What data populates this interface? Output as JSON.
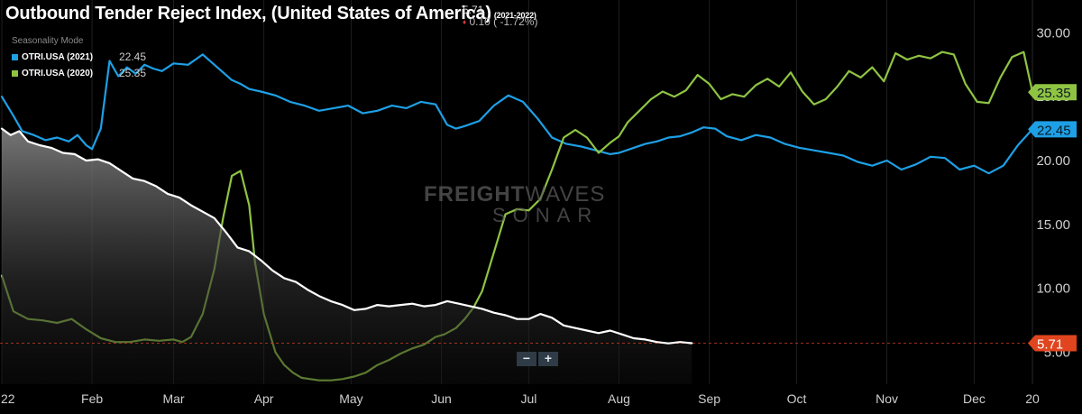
{
  "title": "Outbound Tender Reject Index, (United States of America)",
  "title_range": "(2021-2022)",
  "current_value": "5.71",
  "change": "0.10 ( -1.72%)",
  "mode_label": "Seasonality Mode",
  "legend": [
    {
      "name": "OTRI.USA (2021)",
      "value": "22.45",
      "color": "#1ea0e6"
    },
    {
      "name": "OTRI.USA (2020)",
      "value": "25.35",
      "color": "#8fc443"
    }
  ],
  "zoom": {
    "minus": "−",
    "plus": "+"
  },
  "watermark": {
    "brand_bold": "FREIGHT",
    "brand_light": "WAVES",
    "product": "SONAR"
  },
  "colors": {
    "series_2021": "#1ea0e6",
    "series_2020": "#8fc443",
    "series_2022": "#ffffff",
    "current_badge": "#e0451f"
  },
  "chart_data": {
    "type": "line",
    "ylim": [
      2.5,
      32
    ],
    "y_ticks": [
      "5.00",
      "10.00",
      "15.00",
      "20.00",
      "25.00",
      "30.00"
    ],
    "x_ticks": [
      "22",
      "Feb",
      "Mar",
      "Apr",
      "May",
      "Jun",
      "Jul",
      "Aug",
      "Sep",
      "Oct",
      "Nov",
      "Dec",
      "20"
    ],
    "x_day_range": [
      1,
      355
    ],
    "tick_days": [
      1,
      32,
      60,
      91,
      121,
      152,
      182,
      213,
      244,
      274,
      305,
      335,
      355
    ],
    "value_badges": [
      {
        "series": "OTRI.USA (2020)",
        "label": "25.35",
        "color": "#8fc443"
      },
      {
        "series": "OTRI.USA (2021)",
        "label": "22.45",
        "color": "#1ea0e6"
      },
      {
        "series": "OTRI (2022)",
        "label": "5.71",
        "color": "#e0451f"
      }
    ],
    "series": [
      {
        "name": "OTRI.USA (2021)",
        "color": "#1ea0e6",
        "x": [
          1,
          5,
          8,
          12,
          16,
          20,
          24,
          27,
          30,
          32,
          35,
          38,
          41,
          44,
          47,
          50,
          53,
          56,
          60,
          65,
          70,
          75,
          80,
          83,
          86,
          90,
          95,
          100,
          105,
          110,
          115,
          120,
          125,
          130,
          135,
          140,
          145,
          150,
          154,
          157,
          160,
          165,
          170,
          175,
          180,
          185,
          190,
          195,
          200,
          205,
          210,
          213,
          218,
          222,
          226,
          230,
          234,
          238,
          242,
          246,
          250,
          255,
          260,
          265,
          270,
          275,
          280,
          285,
          290,
          295,
          300,
          305,
          310,
          315,
          320,
          325,
          330,
          335,
          340,
          345,
          350,
          355
        ],
        "y": [
          25,
          23.5,
          22.3,
          22,
          21.6,
          21.8,
          21.5,
          22,
          21.2,
          20.9,
          22.5,
          27.8,
          26.6,
          27.3,
          26.8,
          27.5,
          27.2,
          27,
          27.6,
          27.5,
          28.3,
          27.3,
          26.3,
          26,
          25.6,
          25.4,
          25.1,
          24.6,
          24.3,
          23.9,
          24.1,
          24.3,
          23.7,
          23.9,
          24.3,
          24.1,
          24.6,
          24.4,
          22.8,
          22.5,
          22.7,
          23.1,
          24.3,
          25.1,
          24.6,
          23.3,
          21.8,
          21.3,
          21.1,
          20.8,
          20.5,
          20.6,
          21.0,
          21.3,
          21.5,
          21.8,
          21.9,
          22.2,
          22.6,
          22.5,
          21.9,
          21.6,
          22.0,
          21.8,
          21.3,
          21.0,
          20.8,
          20.6,
          20.4,
          19.9,
          19.6,
          20.0,
          19.3,
          19.7,
          20.3,
          20.2,
          19.3,
          19.6,
          19.0,
          19.6,
          21.2,
          22.45
        ]
      },
      {
        "name": "OTRI.USA (2020)",
        "color": "#8fc443",
        "x": [
          1,
          5,
          10,
          15,
          20,
          25,
          30,
          35,
          40,
          45,
          50,
          55,
          60,
          63,
          66,
          70,
          74,
          77,
          80,
          83,
          86,
          88,
          91,
          95,
          98,
          101,
          104,
          107,
          110,
          114,
          118,
          122,
          126,
          130,
          134,
          138,
          142,
          146,
          150,
          153,
          157,
          160,
          163,
          166,
          170,
          174,
          178,
          182,
          186,
          190,
          194,
          198,
          202,
          206,
          210,
          213,
          216,
          220,
          224,
          228,
          232,
          236,
          240,
          244,
          248,
          252,
          256,
          260,
          264,
          268,
          272,
          276,
          280,
          284,
          288,
          292,
          296,
          300,
          304,
          308,
          312,
          316,
          320,
          324,
          328,
          332,
          336,
          340,
          344,
          348,
          352,
          355
        ],
        "y": [
          11,
          8.2,
          7.6,
          7.5,
          7.3,
          7.6,
          6.8,
          6.1,
          5.8,
          5.8,
          6.0,
          5.9,
          6.0,
          5.8,
          6.2,
          8.0,
          11.5,
          15.5,
          18.8,
          19.2,
          16.5,
          12,
          8,
          5,
          4.0,
          3.4,
          3.0,
          2.9,
          2.8,
          2.8,
          2.9,
          3.1,
          3.4,
          4.0,
          4.4,
          4.9,
          5.3,
          5.6,
          6.2,
          6.4,
          6.9,
          7.6,
          8.5,
          9.8,
          12.8,
          15.8,
          16.2,
          16.1,
          17,
          19.3,
          21.8,
          22.4,
          21.8,
          20.6,
          21.4,
          21.9,
          23.0,
          23.9,
          24.8,
          25.4,
          25.0,
          25.5,
          26.7,
          26.0,
          24.8,
          25.2,
          25.0,
          25.9,
          26.4,
          25.8,
          26.9,
          25.4,
          24.4,
          24.8,
          25.8,
          27.0,
          26.5,
          27.3,
          26.2,
          28.4,
          27.9,
          28.2,
          28.0,
          28.5,
          28.3,
          26.0,
          24.6,
          24.5,
          26.5,
          28.1,
          28.5,
          25.35
        ]
      },
      {
        "name": "OTRI (2022)",
        "color": "#ffffff",
        "area": true,
        "x": [
          1,
          4,
          7,
          10,
          14,
          18,
          22,
          26,
          30,
          34,
          38,
          42,
          46,
          50,
          54,
          58,
          62,
          66,
          70,
          74,
          78,
          82,
          86,
          90,
          94,
          98,
          102,
          106,
          110,
          114,
          118,
          122,
          126,
          130,
          134,
          138,
          142,
          146,
          150,
          154,
          158,
          162,
          166,
          170,
          174,
          178,
          182,
          186,
          190,
          194,
          198,
          202,
          206,
          210,
          214,
          218,
          222,
          226,
          230,
          234,
          238
        ],
        "y": [
          22.5,
          22.0,
          22.3,
          21.5,
          21.2,
          21.0,
          20.6,
          20.5,
          20.0,
          20.1,
          19.8,
          19.2,
          18.6,
          18.4,
          18.0,
          17.4,
          17.1,
          16.5,
          16.0,
          15.5,
          14.4,
          13.2,
          12.9,
          12.2,
          11.4,
          10.8,
          10.5,
          9.9,
          9.4,
          9.0,
          8.7,
          8.3,
          8.4,
          8.7,
          8.6,
          8.7,
          8.8,
          8.6,
          8.7,
          9.0,
          8.8,
          8.6,
          8.4,
          8.1,
          7.9,
          7.6,
          7.6,
          8.0,
          7.7,
          7.1,
          6.9,
          6.7,
          6.5,
          6.7,
          6.4,
          6.1,
          6.0,
          5.8,
          5.7,
          5.8,
          5.71
        ]
      }
    ]
  }
}
